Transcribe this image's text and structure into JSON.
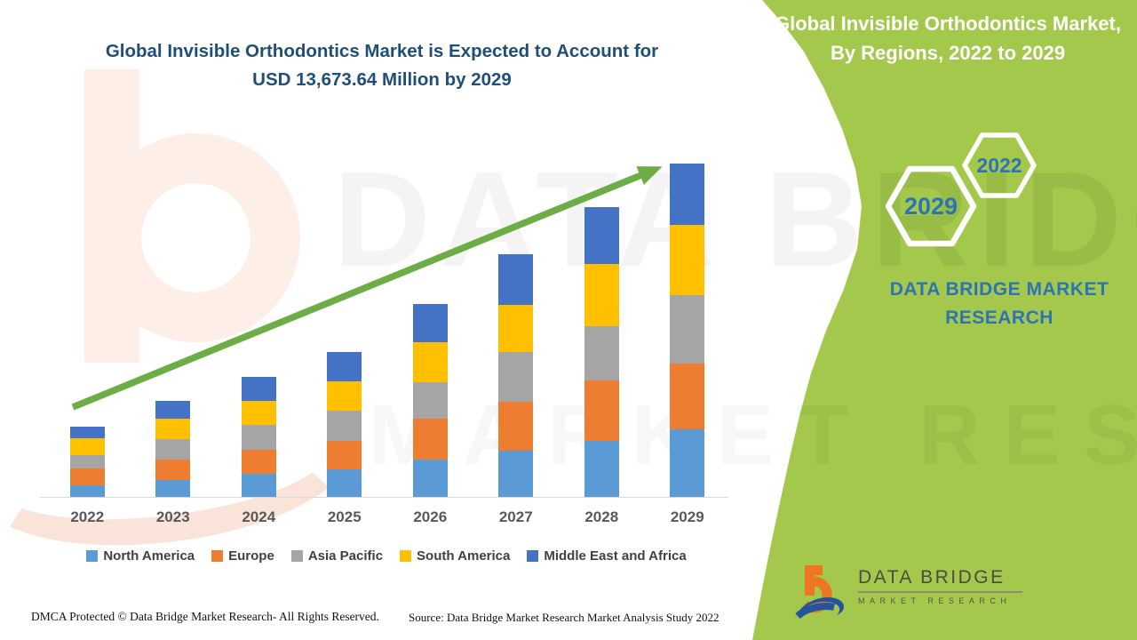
{
  "title": {
    "line1": "Global Invisible Orthodontics Market is Expected to Account for",
    "line2": "USD 13,673.64 Million by 2029"
  },
  "band": {
    "color": "#A4C84C",
    "heading_line1": "Global Invisible Orthodontics Market,",
    "heading_line2": "By Regions, 2022 to 2029",
    "hexagons": [
      {
        "label": "2029"
      },
      {
        "label": "2022"
      }
    ],
    "brand_line1": "DATA BRIDGE MARKET",
    "brand_line2": "RESEARCH"
  },
  "logo": {
    "name": "data-bridge-logo",
    "line1": "DATA BRIDGE",
    "line2": "MARKET RESEARCH",
    "orange": "#EE7623",
    "blue": "#24549C"
  },
  "watermark": {
    "text1": "DATA BRIDGE",
    "text2": "MARKET RESEARCH"
  },
  "footer": {
    "dmca": "DMCA Protected © Data Bridge Market Research- All Rights Reserved.",
    "source": "Source: Data Bridge Market Research Market Analysis Study 2022"
  },
  "chart_data": {
    "type": "bar",
    "subtype": "stacked-vertical",
    "title": "Global Invisible Orthodontics Market, By Regions, 2022 to 2029",
    "categories": [
      "2022",
      "2023",
      "2024",
      "2025",
      "2026",
      "2027",
      "2028",
      "2029"
    ],
    "series": [
      {
        "name": "North America",
        "color": "#5B9BD5",
        "values": [
          520,
          710,
          990,
          1170,
          1560,
          1930,
          2340,
          2790
        ]
      },
      {
        "name": "Europe",
        "color": "#ED7D31",
        "values": [
          670,
          860,
          990,
          1140,
          1670,
          2010,
          2450,
          2710
        ]
      },
      {
        "name": "Asia Pacific",
        "color": "#A5A5A5",
        "values": [
          560,
          820,
          990,
          1240,
          1490,
          2010,
          2230,
          2790
        ]
      },
      {
        "name": "South America",
        "color": "#FFC000",
        "values": [
          670,
          860,
          1000,
          1210,
          1640,
          1930,
          2560,
          2860
        ]
      },
      {
        "name": "Middle East and Africa",
        "color": "#4472C4",
        "values": [
          480,
          710,
          970,
          1220,
          1560,
          2080,
          2300,
          2523.64
        ]
      }
    ],
    "stack_order": "bottom to top as listed",
    "totals_estimated": [
      2900,
      3960,
      4940,
      5980,
      7920,
      9960,
      11880,
      13673.64
    ],
    "units": "USD Million (segment values estimated from bar heights; only the 2029 total of USD 13,673.64 Million is stated on the image)",
    "xlabel": "",
    "ylabel": "",
    "y_axis_shown": false,
    "grid": false,
    "legend_position": "bottom",
    "trend_arrow_color": "#6CAE45",
    "label_color": "#595959",
    "legend_text_color": "#404040"
  }
}
